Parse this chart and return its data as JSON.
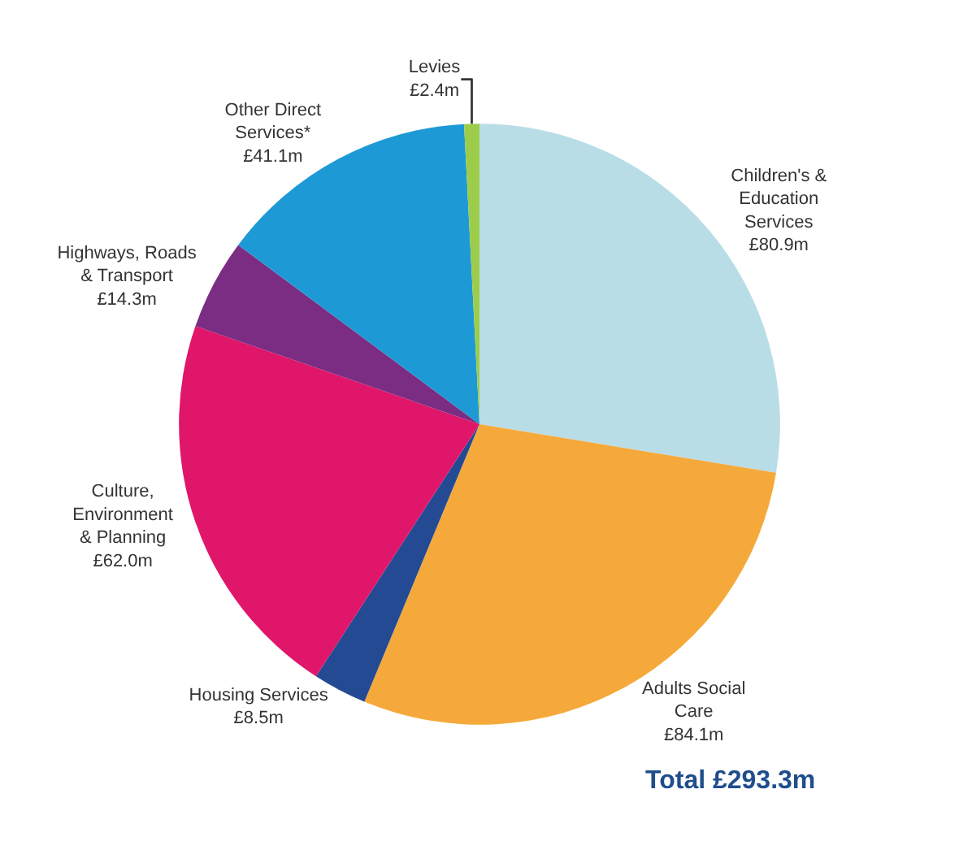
{
  "chart_data": {
    "type": "pie",
    "categories": [
      "Children's & Education Services",
      "Adults Social Care",
      "Housing Services",
      "Culture, Environment & Planning",
      "Highways, Roads & Transport",
      "Other Direct Services*",
      "Levies"
    ],
    "values": [
      80.9,
      84.1,
      8.5,
      62.0,
      14.3,
      41.1,
      2.4
    ],
    "value_labels": [
      "£80.9m",
      "£84.1m",
      "£8.5m",
      "£62.0m",
      "£14.3m",
      "£41.1m",
      "£2.4m"
    ],
    "colors": [
      "#b9dde7",
      "#f5a93a",
      "#254a94",
      "#e0166a",
      "#7b2d83",
      "#1d9ad6",
      "#9ccc4a"
    ],
    "legend": false,
    "annotations": [
      "Total £293.3m"
    ]
  }
}
